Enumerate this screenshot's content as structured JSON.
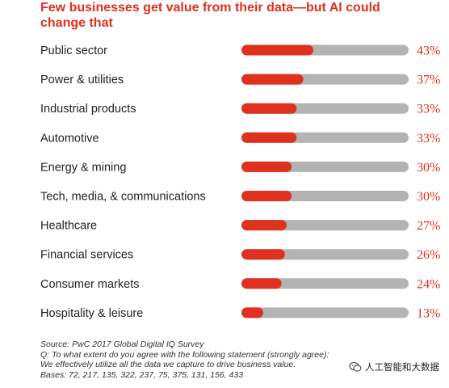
{
  "chart_data": {
    "type": "bar",
    "orientation": "horizontal",
    "title": "Few businesses get value from their data—but AI could change that",
    "categories": [
      "Public sector",
      "Power & utilities",
      "Industrial products",
      "Automotive",
      "Energy & mining",
      "Tech, media, & communications",
      "Healthcare",
      "Financial services",
      "Consumer markets",
      "Hospitality & leisure"
    ],
    "values": [
      43,
      37,
      33,
      33,
      30,
      30,
      27,
      26,
      24,
      13
    ],
    "value_labels": [
      "43%",
      "37%",
      "33%",
      "33%",
      "30%",
      "30%",
      "27%",
      "26%",
      "24%",
      "13%"
    ],
    "xlim": [
      0,
      100
    ],
    "bar_color": "#e0301e",
    "track_color": "#b3b3b3",
    "grid": false,
    "legend": "none"
  },
  "footer": {
    "source": "Source: PwC 2017 Global Digital IQ Survey",
    "question_1": "Q: To what extent do you agree with the following statement (strongly agree):",
    "question_2": "We effectively utilize all the data we capture to drive business value.",
    "bases": "Bases: 72, 217, 135, 322, 237, 75, 375, 131, 156, 433"
  },
  "watermark": {
    "text": "人工智能和大数据",
    "icon": "wechat-icon"
  }
}
